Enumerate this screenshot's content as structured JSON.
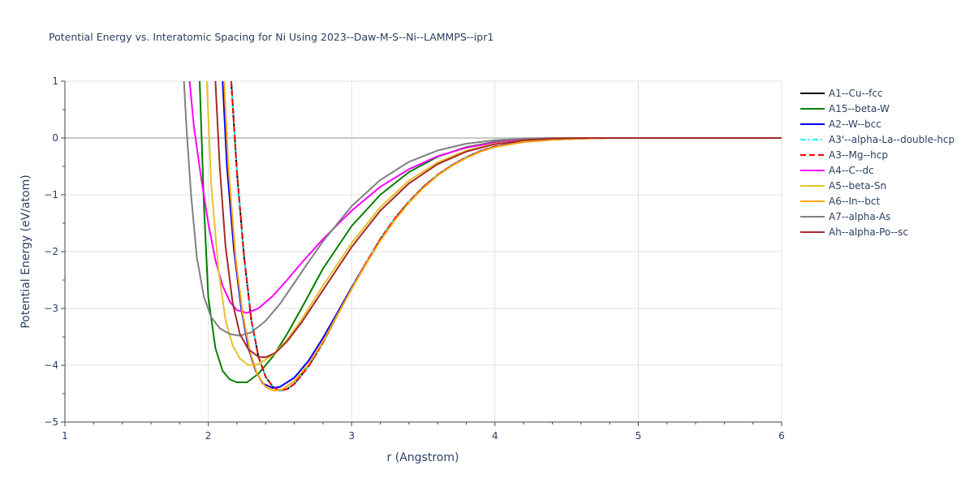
{
  "chart_data": {
    "type": "line",
    "title": "Potential Energy vs. Interatomic Spacing for Ni Using 2023--Daw-M-S--Ni--LAMMPS--ipr1",
    "xlabel": "r (Angstrom)",
    "ylabel": "Potential Energy (eV/atom)",
    "xlim": [
      1,
      6
    ],
    "ylim": [
      -5,
      1
    ],
    "x_ticks": [
      1,
      2,
      3,
      4,
      5,
      6
    ],
    "y_ticks": [
      1,
      0,
      -1,
      -2,
      -3,
      -4,
      -5
    ],
    "x_tick_labels": [
      "1",
      "2",
      "3",
      "4",
      "5",
      "6"
    ],
    "y_tick_labels": [
      "1",
      "0",
      "−1",
      "−2",
      "−3",
      "−4",
      "−5"
    ],
    "grid": true,
    "legend_position": "right",
    "series": [
      {
        "name": "A1--Cu--fcc",
        "color": "#000000",
        "dash": "solid",
        "points": [
          [
            2.16,
            1.0
          ],
          [
            2.2,
            -0.6
          ],
          [
            2.25,
            -2.1
          ],
          [
            2.3,
            -3.2
          ],
          [
            2.35,
            -3.85
          ],
          [
            2.4,
            -4.2
          ],
          [
            2.45,
            -4.38
          ],
          [
            2.5,
            -4.45
          ],
          [
            2.55,
            -4.42
          ],
          [
            2.6,
            -4.33
          ],
          [
            2.7,
            -4.02
          ],
          [
            2.8,
            -3.6
          ],
          [
            2.9,
            -3.12
          ],
          [
            3.0,
            -2.65
          ],
          [
            3.1,
            -2.2
          ],
          [
            3.2,
            -1.78
          ],
          [
            3.3,
            -1.42
          ],
          [
            3.4,
            -1.12
          ],
          [
            3.5,
            -0.86
          ],
          [
            3.6,
            -0.65
          ],
          [
            3.7,
            -0.48
          ],
          [
            3.8,
            -0.34
          ],
          [
            3.9,
            -0.23
          ],
          [
            4.0,
            -0.15
          ],
          [
            4.2,
            -0.07
          ],
          [
            4.4,
            -0.03
          ],
          [
            4.6,
            -0.01
          ],
          [
            4.8,
            0.0
          ],
          [
            5.0,
            0.0
          ],
          [
            6.0,
            0.0
          ]
        ]
      },
      {
        "name": "A15--beta-W",
        "color": "#008000",
        "dash": "solid",
        "points": [
          [
            1.94,
            1.0
          ],
          [
            1.97,
            -1.2
          ],
          [
            2.0,
            -2.8
          ],
          [
            2.05,
            -3.7
          ],
          [
            2.1,
            -4.1
          ],
          [
            2.15,
            -4.25
          ],
          [
            2.2,
            -4.3
          ],
          [
            2.27,
            -4.3
          ],
          [
            2.35,
            -4.15
          ],
          [
            2.45,
            -3.85
          ],
          [
            2.55,
            -3.45
          ],
          [
            2.65,
            -3.0
          ],
          [
            2.8,
            -2.3
          ],
          [
            3.0,
            -1.55
          ],
          [
            3.2,
            -1.0
          ],
          [
            3.4,
            -0.6
          ],
          [
            3.6,
            -0.33
          ],
          [
            3.8,
            -0.16
          ],
          [
            4.0,
            -0.07
          ],
          [
            4.2,
            -0.03
          ],
          [
            4.4,
            -0.01
          ],
          [
            4.6,
            0.0
          ],
          [
            5.0,
            0.0
          ],
          [
            6.0,
            0.0
          ]
        ]
      },
      {
        "name": "A2--W--bcc",
        "color": "#0000ff",
        "dash": "solid",
        "points": [
          [
            2.1,
            1.0
          ],
          [
            2.13,
            -0.5
          ],
          [
            2.18,
            -2.0
          ],
          [
            2.23,
            -3.0
          ],
          [
            2.28,
            -3.7
          ],
          [
            2.33,
            -4.1
          ],
          [
            2.38,
            -4.32
          ],
          [
            2.45,
            -4.4
          ],
          [
            2.5,
            -4.38
          ],
          [
            2.6,
            -4.22
          ],
          [
            2.7,
            -3.92
          ],
          [
            2.8,
            -3.52
          ],
          [
            2.9,
            -3.08
          ],
          [
            3.0,
            -2.63
          ],
          [
            3.1,
            -2.2
          ],
          [
            3.2,
            -1.8
          ],
          [
            3.3,
            -1.44
          ],
          [
            3.4,
            -1.13
          ],
          [
            3.5,
            -0.87
          ],
          [
            3.6,
            -0.65
          ],
          [
            3.7,
            -0.48
          ],
          [
            3.8,
            -0.34
          ],
          [
            3.9,
            -0.23
          ],
          [
            4.0,
            -0.15
          ],
          [
            4.2,
            -0.06
          ],
          [
            4.4,
            -0.02
          ],
          [
            4.6,
            0.0
          ],
          [
            5.0,
            0.0
          ],
          [
            6.0,
            0.0
          ]
        ]
      },
      {
        "name": "A3'--alpha-La--double-hcp",
        "color": "#00ffff",
        "dash": "dashdot",
        "points": [
          [
            2.16,
            1.0
          ],
          [
            2.2,
            -0.6
          ],
          [
            2.25,
            -2.1
          ],
          [
            2.3,
            -3.2
          ],
          [
            2.35,
            -3.85
          ],
          [
            2.4,
            -4.2
          ],
          [
            2.45,
            -4.38
          ],
          [
            2.5,
            -4.45
          ],
          [
            2.55,
            -4.42
          ],
          [
            2.6,
            -4.33
          ],
          [
            2.7,
            -4.02
          ],
          [
            2.8,
            -3.6
          ],
          [
            2.9,
            -3.12
          ],
          [
            3.0,
            -2.65
          ],
          [
            3.1,
            -2.2
          ],
          [
            3.2,
            -1.78
          ],
          [
            3.3,
            -1.42
          ],
          [
            3.4,
            -1.12
          ],
          [
            3.5,
            -0.86
          ],
          [
            3.6,
            -0.65
          ],
          [
            3.7,
            -0.48
          ],
          [
            3.8,
            -0.34
          ],
          [
            3.9,
            -0.23
          ],
          [
            4.0,
            -0.15
          ],
          [
            4.2,
            -0.07
          ],
          [
            4.4,
            -0.03
          ],
          [
            4.6,
            -0.01
          ],
          [
            4.8,
            0.0
          ],
          [
            5.0,
            0.0
          ],
          [
            6.0,
            0.0
          ]
        ]
      },
      {
        "name": "A3--Mg--hcp",
        "color": "#ff0000",
        "dash": "dash",
        "points": [
          [
            2.16,
            1.0
          ],
          [
            2.2,
            -0.6
          ],
          [
            2.25,
            -2.1
          ],
          [
            2.3,
            -3.2
          ],
          [
            2.35,
            -3.85
          ],
          [
            2.4,
            -4.2
          ],
          [
            2.45,
            -4.38
          ],
          [
            2.5,
            -4.45
          ],
          [
            2.55,
            -4.42
          ],
          [
            2.6,
            -4.33
          ],
          [
            2.7,
            -4.02
          ],
          [
            2.8,
            -3.6
          ],
          [
            2.9,
            -3.12
          ],
          [
            3.0,
            -2.65
          ],
          [
            3.1,
            -2.2
          ],
          [
            3.2,
            -1.78
          ],
          [
            3.3,
            -1.42
          ],
          [
            3.4,
            -1.12
          ],
          [
            3.5,
            -0.86
          ],
          [
            3.6,
            -0.65
          ],
          [
            3.7,
            -0.48
          ],
          [
            3.8,
            -0.34
          ],
          [
            3.9,
            -0.23
          ],
          [
            4.0,
            -0.15
          ],
          [
            4.2,
            -0.07
          ],
          [
            4.4,
            -0.03
          ],
          [
            4.6,
            -0.01
          ],
          [
            4.8,
            0.0
          ],
          [
            5.0,
            0.0
          ],
          [
            6.0,
            0.0
          ]
        ]
      },
      {
        "name": "A4--C--dc",
        "color": "#ff00ff",
        "dash": "solid",
        "points": [
          [
            1.87,
            1.0
          ],
          [
            1.9,
            0.2
          ],
          [
            1.95,
            -0.7
          ],
          [
            2.0,
            -1.5
          ],
          [
            2.05,
            -2.15
          ],
          [
            2.1,
            -2.6
          ],
          [
            2.15,
            -2.88
          ],
          [
            2.2,
            -3.03
          ],
          [
            2.27,
            -3.08
          ],
          [
            2.35,
            -3.0
          ],
          [
            2.45,
            -2.78
          ],
          [
            2.55,
            -2.5
          ],
          [
            2.65,
            -2.2
          ],
          [
            2.8,
            -1.78
          ],
          [
            3.0,
            -1.28
          ],
          [
            3.2,
            -0.86
          ],
          [
            3.4,
            -0.55
          ],
          [
            3.6,
            -0.32
          ],
          [
            3.8,
            -0.17
          ],
          [
            4.0,
            -0.08
          ],
          [
            4.2,
            -0.03
          ],
          [
            4.4,
            -0.01
          ],
          [
            4.6,
            0.0
          ],
          [
            5.0,
            0.0
          ],
          [
            6.0,
            0.0
          ]
        ]
      },
      {
        "name": "A5--beta-Sn",
        "color": "#e6c229",
        "dash": "solid",
        "points": [
          [
            1.99,
            1.0
          ],
          [
            2.02,
            -0.8
          ],
          [
            2.07,
            -2.3
          ],
          [
            2.12,
            -3.2
          ],
          [
            2.17,
            -3.65
          ],
          [
            2.22,
            -3.88
          ],
          [
            2.28,
            -4.0
          ],
          [
            2.35,
            -3.98
          ],
          [
            2.45,
            -3.82
          ],
          [
            2.55,
            -3.55
          ],
          [
            2.65,
            -3.2
          ],
          [
            2.8,
            -2.6
          ],
          [
            3.0,
            -1.85
          ],
          [
            3.2,
            -1.22
          ],
          [
            3.4,
            -0.75
          ],
          [
            3.6,
            -0.43
          ],
          [
            3.8,
            -0.22
          ],
          [
            4.0,
            -0.1
          ],
          [
            4.2,
            -0.04
          ],
          [
            4.4,
            -0.01
          ],
          [
            4.6,
            0.0
          ],
          [
            5.0,
            0.0
          ],
          [
            6.0,
            0.0
          ]
        ]
      },
      {
        "name": "A6--In--bct",
        "color": "#ffa500",
        "dash": "solid",
        "points": [
          [
            2.11,
            1.0
          ],
          [
            2.14,
            -0.5
          ],
          [
            2.19,
            -2.1
          ],
          [
            2.24,
            -3.1
          ],
          [
            2.29,
            -3.75
          ],
          [
            2.34,
            -4.15
          ],
          [
            2.4,
            -4.38
          ],
          [
            2.46,
            -4.45
          ],
          [
            2.52,
            -4.42
          ],
          [
            2.6,
            -4.28
          ],
          [
            2.7,
            -3.98
          ],
          [
            2.8,
            -3.58
          ],
          [
            2.9,
            -3.12
          ],
          [
            3.0,
            -2.66
          ],
          [
            3.1,
            -2.22
          ],
          [
            3.2,
            -1.81
          ],
          [
            3.3,
            -1.45
          ],
          [
            3.4,
            -1.14
          ],
          [
            3.5,
            -0.88
          ],
          [
            3.6,
            -0.66
          ],
          [
            3.7,
            -0.49
          ],
          [
            3.8,
            -0.35
          ],
          [
            3.9,
            -0.24
          ],
          [
            4.0,
            -0.16
          ],
          [
            4.2,
            -0.07
          ],
          [
            4.4,
            -0.03
          ],
          [
            4.6,
            -0.01
          ],
          [
            4.8,
            0.0
          ],
          [
            5.0,
            0.0
          ],
          [
            6.0,
            0.0
          ]
        ]
      },
      {
        "name": "A7--alpha-As",
        "color": "#808080",
        "dash": "solid",
        "points": [
          [
            1.83,
            1.0
          ],
          [
            1.85,
            0.1
          ],
          [
            1.88,
            -1.0
          ],
          [
            1.92,
            -2.1
          ],
          [
            1.97,
            -2.8
          ],
          [
            2.02,
            -3.15
          ],
          [
            2.08,
            -3.35
          ],
          [
            2.15,
            -3.45
          ],
          [
            2.22,
            -3.48
          ],
          [
            2.3,
            -3.42
          ],
          [
            2.4,
            -3.22
          ],
          [
            2.5,
            -2.92
          ],
          [
            2.6,
            -2.55
          ],
          [
            2.7,
            -2.18
          ],
          [
            2.8,
            -1.82
          ],
          [
            3.0,
            -1.2
          ],
          [
            3.2,
            -0.74
          ],
          [
            3.4,
            -0.42
          ],
          [
            3.6,
            -0.22
          ],
          [
            3.8,
            -0.1
          ],
          [
            4.0,
            -0.04
          ],
          [
            4.2,
            -0.01
          ],
          [
            4.4,
            0.0
          ],
          [
            5.0,
            0.0
          ],
          [
            6.0,
            0.0
          ]
        ]
      },
      {
        "name": "Ah--alpha-Po--sc",
        "color": "#a52a2a",
        "dash": "solid",
        "points": [
          [
            2.05,
            1.0
          ],
          [
            2.08,
            -0.5
          ],
          [
            2.12,
            -1.9
          ],
          [
            2.17,
            -2.9
          ],
          [
            2.22,
            -3.45
          ],
          [
            2.28,
            -3.72
          ],
          [
            2.35,
            -3.85
          ],
          [
            2.4,
            -3.86
          ],
          [
            2.47,
            -3.78
          ],
          [
            2.55,
            -3.58
          ],
          [
            2.65,
            -3.25
          ],
          [
            2.8,
            -2.68
          ],
          [
            3.0,
            -1.92
          ],
          [
            3.2,
            -1.28
          ],
          [
            3.4,
            -0.8
          ],
          [
            3.6,
            -0.46
          ],
          [
            3.8,
            -0.24
          ],
          [
            4.0,
            -0.11
          ],
          [
            4.2,
            -0.04
          ],
          [
            4.4,
            -0.01
          ],
          [
            4.6,
            0.0
          ],
          [
            5.0,
            0.0
          ],
          [
            6.0,
            0.0
          ]
        ]
      }
    ]
  }
}
